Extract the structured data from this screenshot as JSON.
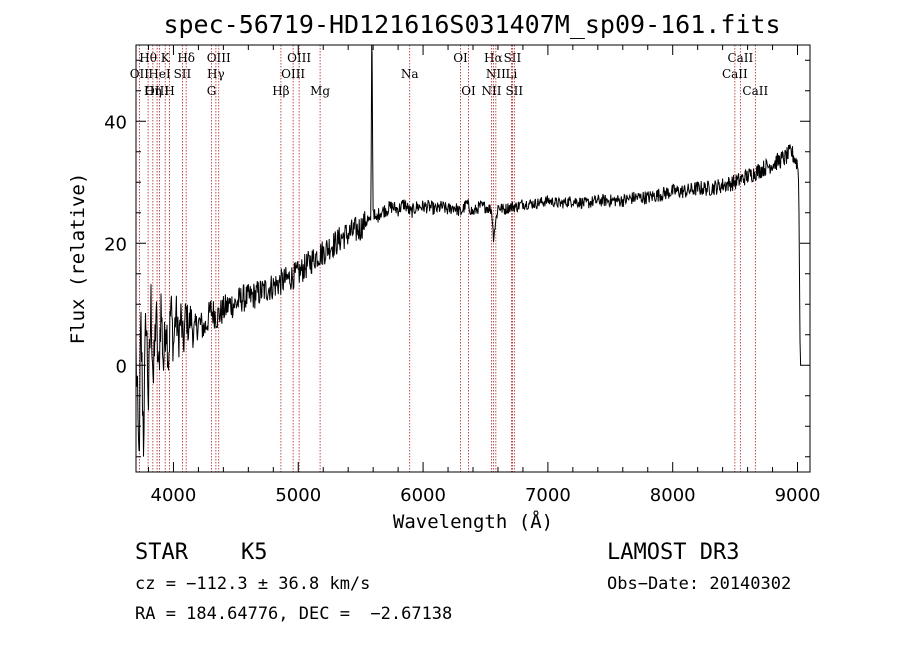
{
  "chart_data": {
    "type": "line",
    "title": "spec-56719-HD121616S031407M_sp09-161.fits",
    "xlabel": "Wavelength (Å)",
    "ylabel": "Flux (relative)",
    "xlim": [
      3700,
      9100
    ],
    "ylim": [
      -17.5,
      52.5
    ],
    "xticks": [
      4000,
      5000,
      6000,
      7000,
      8000,
      9000
    ],
    "yticks": [
      0,
      20,
      40
    ],
    "series": [
      {
        "name": "flux",
        "color": "#000000",
        "points": [
          [
            3700,
            2
          ],
          [
            3720,
            -14
          ],
          [
            3740,
            6
          ],
          [
            3760,
            -12
          ],
          [
            3780,
            9
          ],
          [
            3800,
            -6
          ],
          [
            3820,
            10
          ],
          [
            3840,
            -3
          ],
          [
            3860,
            9
          ],
          [
            3880,
            -2
          ],
          [
            3900,
            10
          ],
          [
            3920,
            0
          ],
          [
            3940,
            8
          ],
          [
            3960,
            1
          ],
          [
            3980,
            10
          ],
          [
            4000,
            3
          ],
          [
            4020,
            9
          ],
          [
            4040,
            4
          ],
          [
            4060,
            8
          ],
          [
            4080,
            3
          ],
          [
            4100,
            9
          ],
          [
            4120,
            6
          ],
          [
            4140,
            8
          ],
          [
            4160,
            5
          ],
          [
            4200,
            7
          ],
          [
            4250,
            6
          ],
          [
            4300,
            9
          ],
          [
            4350,
            8
          ],
          [
            4400,
            9
          ],
          [
            4450,
            10
          ],
          [
            4500,
            10
          ],
          [
            4550,
            11
          ],
          [
            4600,
            11
          ],
          [
            4650,
            11.5
          ],
          [
            4700,
            12
          ],
          [
            4750,
            12.5
          ],
          [
            4800,
            13
          ],
          [
            4850,
            13.5
          ],
          [
            4900,
            14
          ],
          [
            4950,
            14.5
          ],
          [
            5000,
            15
          ],
          [
            5050,
            16
          ],
          [
            5100,
            17
          ],
          [
            5150,
            18
          ],
          [
            5200,
            18.5
          ],
          [
            5250,
            19.5
          ],
          [
            5300,
            20
          ],
          [
            5350,
            21
          ],
          [
            5400,
            21.5
          ],
          [
            5450,
            22
          ],
          [
            5500,
            22.5
          ],
          [
            5550,
            24
          ],
          [
            5580,
            23
          ],
          [
            5590,
            52
          ],
          [
            5600,
            26
          ],
          [
            5620,
            23.5
          ],
          [
            5650,
            25
          ],
          [
            5700,
            25.5
          ],
          [
            5750,
            26
          ],
          [
            5800,
            25.5
          ],
          [
            5850,
            26.5
          ],
          [
            5900,
            25
          ],
          [
            5950,
            26
          ],
          [
            6000,
            26
          ],
          [
            6050,
            26
          ],
          [
            6100,
            25.5
          ],
          [
            6150,
            26
          ],
          [
            6200,
            25.5
          ],
          [
            6250,
            26
          ],
          [
            6300,
            25
          ],
          [
            6350,
            26.5
          ],
          [
            6400,
            25
          ],
          [
            6450,
            26
          ],
          [
            6500,
            26
          ],
          [
            6550,
            25.5
          ],
          [
            6563,
            21
          ],
          [
            6600,
            26
          ],
          [
            6650,
            25.5
          ],
          [
            6700,
            26
          ],
          [
            6750,
            26
          ],
          [
            6800,
            26.5
          ],
          [
            6900,
            26.5
          ],
          [
            7000,
            27
          ],
          [
            7100,
            26.5
          ],
          [
            7200,
            27
          ],
          [
            7300,
            26.5
          ],
          [
            7400,
            27
          ],
          [
            7500,
            27
          ],
          [
            7600,
            27
          ],
          [
            7700,
            27.5
          ],
          [
            7800,
            27.5
          ],
          [
            7900,
            28
          ],
          [
            8000,
            28.5
          ],
          [
            8100,
            28.5
          ],
          [
            8200,
            29
          ],
          [
            8300,
            29
          ],
          [
            8400,
            29.5
          ],
          [
            8500,
            30
          ],
          [
            8600,
            31
          ],
          [
            8700,
            32
          ],
          [
            8800,
            33
          ],
          [
            8900,
            34
          ],
          [
            8950,
            35
          ],
          [
            9000,
            33
          ],
          [
            9010,
            30
          ],
          [
            9020,
            4
          ],
          [
            9025,
            0
          ],
          [
            9100,
            0
          ]
        ]
      }
    ],
    "noise_amplitude": [
      [
        3700,
        6
      ],
      [
        4200,
        2.5
      ],
      [
        5000,
        2.2
      ],
      [
        5500,
        2.3
      ],
      [
        5600,
        1.2
      ],
      [
        7000,
        0.9
      ],
      [
        8000,
        1.2
      ],
      [
        9000,
        1.5
      ]
    ],
    "spectral_lines": [
      {
        "label": "Hθ",
        "wavelength": 3797,
        "row": 1
      },
      {
        "label": "OII",
        "wavelength": 3727,
        "row": 2
      },
      {
        "label": "OIII",
        "wavelength": 3869,
        "row": 3
      },
      {
        "label": "K",
        "wavelength": 3934,
        "row": 1
      },
      {
        "label": "HeI",
        "wavelength": 3889,
        "row": 2
      },
      {
        "label": "Hη",
        "wavelength": 3835,
        "row": 3
      },
      {
        "label": "SII",
        "wavelength": 4072,
        "row": 2
      },
      {
        "label": "H",
        "wavelength": 3969,
        "row": 3
      },
      {
        "label": "Hδ",
        "wavelength": 4102,
        "row": 1
      },
      {
        "label": "OIII",
        "wavelength": 4363,
        "row": 1
      },
      {
        "label": "Hγ",
        "wavelength": 4340,
        "row": 2
      },
      {
        "label": "G",
        "wavelength": 4305,
        "row": 3
      },
      {
        "label": "OIII",
        "wavelength": 5007,
        "row": 1
      },
      {
        "label": "OIII",
        "wavelength": 4959,
        "row": 2
      },
      {
        "label": "Hβ",
        "wavelength": 4861,
        "row": 3
      },
      {
        "label": "Mg",
        "wavelength": 5175,
        "row": 3
      },
      {
        "label": "Na",
        "wavelength": 5893,
        "row": 2
      },
      {
        "label": "OI",
        "wavelength": 6300,
        "row": 1
      },
      {
        "label": "OI",
        "wavelength": 6364,
        "row": 3
      },
      {
        "label": "Hα",
        "wavelength": 6563,
        "row": 1
      },
      {
        "label": "SII",
        "wavelength": 6716,
        "row": 1
      },
      {
        "label": "NII",
        "wavelength": 6583,
        "row": 2
      },
      {
        "label": "Li",
        "wavelength": 6708,
        "row": 2
      },
      {
        "label": "NII",
        "wavelength": 6548,
        "row": 3
      },
      {
        "label": "SII",
        "wavelength": 6731,
        "row": 3
      },
      {
        "label": "CaII",
        "wavelength": 8542,
        "row": 1
      },
      {
        "label": "CaII",
        "wavelength": 8498,
        "row": 2
      },
      {
        "label": "CaII",
        "wavelength": 8662,
        "row": 3
      }
    ]
  },
  "info": {
    "class": "STAR",
    "subclass": "K5",
    "survey": "LAMOST DR3",
    "cz": "cz = −112.3 ± 36.8 km/s",
    "obs_date": "Obs−Date: 20140302",
    "coords": "RA = 184.64776, DEC =  −2.67138"
  }
}
